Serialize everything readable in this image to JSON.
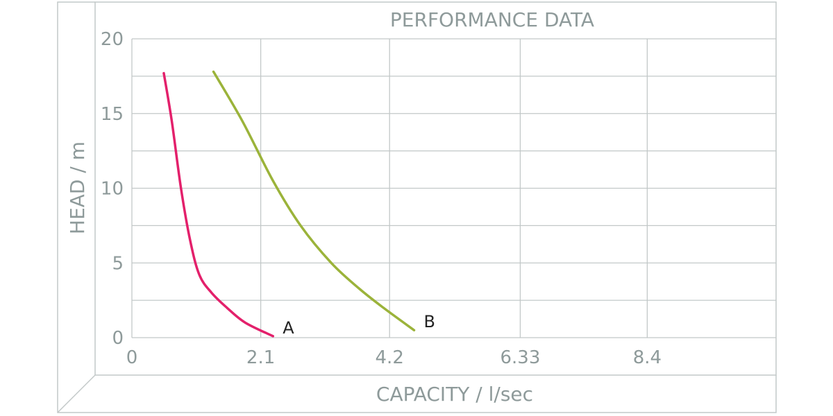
{
  "colors": {
    "frame": "#c2c8c8",
    "grid": "#c2c8c8",
    "text": "#8e9a9a",
    "series_label": "#222222"
  },
  "chart_data": {
    "type": "line",
    "title": "PERFORMANCE DATA",
    "xlabel": "CAPACITY / l/sec",
    "ylabel": "HEAD / m",
    "xlim": [
      0,
      10.5
    ],
    "ylim": [
      0,
      20
    ],
    "x_ticks": [
      "0",
      "2.1",
      "4.2",
      "6.33",
      "8.4"
    ],
    "y_ticks": [
      "0",
      "5",
      "10",
      "15",
      "20"
    ],
    "grid": true,
    "series": [
      {
        "name": "A",
        "color": "#e3206b",
        "points": [
          [
            0.52,
            17.7
          ],
          [
            0.65,
            14.5
          ],
          [
            0.8,
            10.0
          ],
          [
            0.95,
            6.5
          ],
          [
            1.1,
            4.2
          ],
          [
            1.3,
            3.0
          ],
          [
            1.55,
            2.0
          ],
          [
            1.85,
            1.0
          ],
          [
            2.3,
            0.1
          ]
        ]
      },
      {
        "name": "B",
        "color": "#9bb33a",
        "points": [
          [
            1.33,
            17.8
          ],
          [
            1.8,
            14.5
          ],
          [
            2.3,
            10.5
          ],
          [
            2.75,
            7.5
          ],
          [
            3.25,
            5.0
          ],
          [
            3.7,
            3.3
          ],
          [
            4.1,
            2.0
          ],
          [
            4.6,
            0.5
          ]
        ]
      }
    ]
  }
}
